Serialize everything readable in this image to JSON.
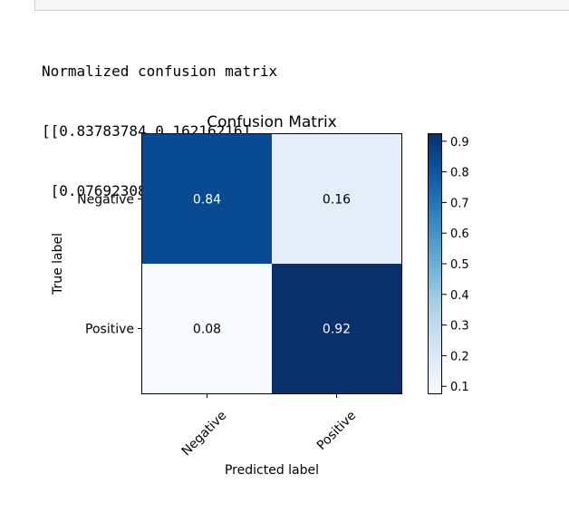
{
  "output": {
    "lines": [
      "Normalized confusion matrix",
      "[[0.83783784 0.16216216]",
      " [0.07692308 0.92307692]]"
    ]
  },
  "chart_data": {
    "type": "heatmap",
    "title": "Confusion Matrix",
    "xlabel": "Predicted label",
    "ylabel": "True label",
    "x_categories": [
      "Negative",
      "Positive"
    ],
    "y_categories": [
      "Negative",
      "Positive"
    ],
    "values": [
      [
        0.84,
        0.16
      ],
      [
        0.08,
        0.92
      ]
    ],
    "raw_values": [
      [
        0.83783784,
        0.16216216
      ],
      [
        0.07692308,
        0.92307692
      ]
    ],
    "colormap": "Blues",
    "colorbar": {
      "ticks": [
        0.1,
        0.2,
        0.3,
        0.4,
        0.5,
        0.6,
        0.7,
        0.8,
        0.9
      ],
      "tick_labels": [
        "0.1",
        "0.2",
        "0.3",
        "0.4",
        "0.5",
        "0.6",
        "0.7",
        "0.8",
        "0.9"
      ],
      "range": [
        0.07692308,
        0.92307692
      ]
    },
    "grid": false
  }
}
